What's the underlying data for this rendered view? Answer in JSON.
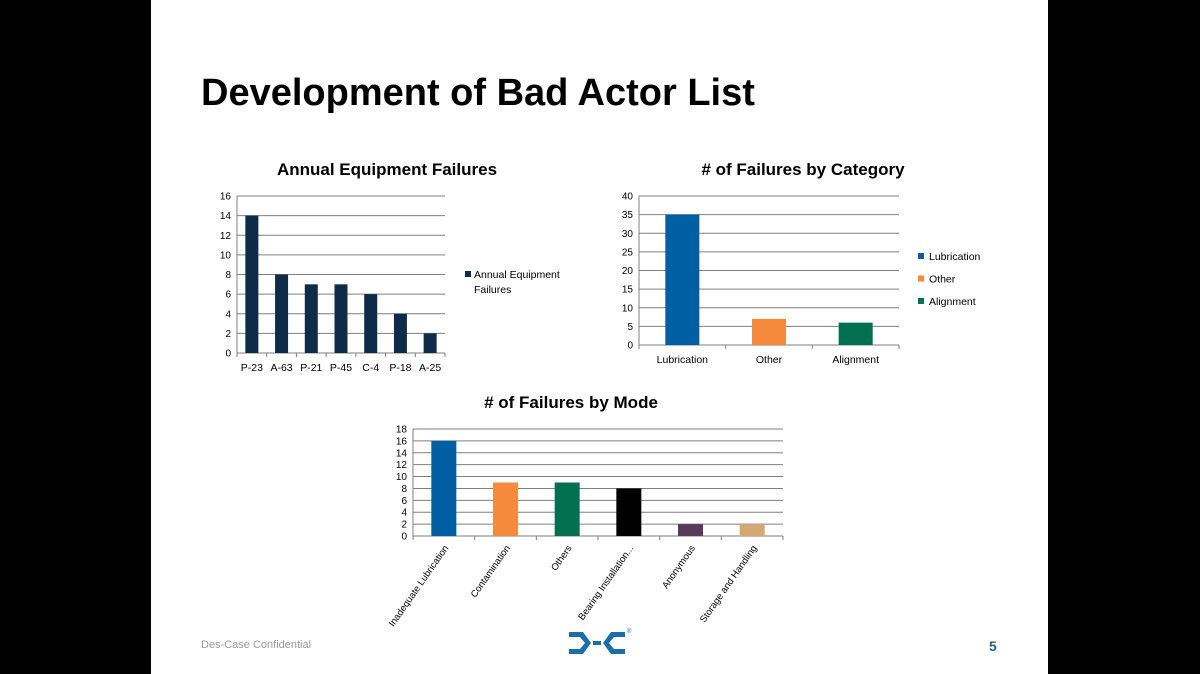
{
  "slide": {
    "title": "Development of Bad Actor List",
    "footer_text": "Des-Case Confidential",
    "page_number": "5",
    "logo_name": "des-case-logo",
    "logo_color": "#1a6fa8"
  },
  "chart_data": [
    {
      "type": "bar",
      "title": "Annual Equipment Failures",
      "categories": [
        "P-23",
        "A-63",
        "P-21",
        "P-45",
        "C-4",
        "P-18",
        "A-25"
      ],
      "series": [
        {
          "name": "Annual Equipment Failures",
          "values": [
            14,
            8,
            7,
            7,
            6,
            4,
            2
          ],
          "color": "#0f2b4a"
        }
      ],
      "ylim": [
        0,
        16
      ],
      "yticks": [
        0,
        2,
        4,
        6,
        8,
        10,
        12,
        14,
        16
      ],
      "grid": true,
      "legend": "right",
      "legend_lines": [
        "Annual Equipment",
        "Failures"
      ]
    },
    {
      "type": "bar",
      "title": "# of Failures by Category",
      "categories": [
        "Lubrication",
        "Other",
        "Alignment"
      ],
      "values": [
        35,
        7,
        6
      ],
      "colors": [
        "#005fa3",
        "#f68a3c",
        "#00704f"
      ],
      "legend_entries": [
        "Lubrication",
        "Other",
        "Alignment"
      ],
      "ylim": [
        0,
        40
      ],
      "yticks": [
        0,
        5,
        10,
        15,
        20,
        25,
        30,
        35,
        40
      ],
      "grid": true,
      "legend": "right"
    },
    {
      "type": "bar",
      "title": "# of Failures by Mode",
      "categories": [
        "Inadequate Lubrication",
        "Contamination",
        "Others",
        "Bearing Installation...",
        "Anonymous",
        "Storage and Handling"
      ],
      "values": [
        16,
        9,
        9,
        8,
        2,
        2
      ],
      "colors": [
        "#005fa3",
        "#f68a3c",
        "#00704f",
        "#000000",
        "#5a3a5c",
        "#d4a872"
      ],
      "ylim": [
        0,
        18
      ],
      "yticks": [
        0,
        2,
        4,
        6,
        8,
        10,
        12,
        14,
        16,
        18
      ],
      "grid": true,
      "legend": "none"
    }
  ]
}
